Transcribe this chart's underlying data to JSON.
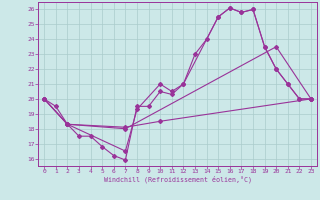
{
  "xlabel": "Windchill (Refroidissement éolien,°C)",
  "bg_color": "#cce8e8",
  "line_color": "#993399",
  "grid_color": "#aacccc",
  "xlim": [
    -0.5,
    23.5
  ],
  "ylim": [
    15.5,
    26.5
  ],
  "xticks": [
    0,
    1,
    2,
    3,
    4,
    5,
    6,
    7,
    8,
    9,
    10,
    11,
    12,
    13,
    14,
    15,
    16,
    17,
    18,
    19,
    20,
    21,
    22,
    23
  ],
  "yticks": [
    16,
    17,
    18,
    19,
    20,
    21,
    22,
    23,
    24,
    25,
    26
  ],
  "series1": [
    [
      0,
      20.0
    ],
    [
      1,
      19.5
    ],
    [
      2,
      18.3
    ],
    [
      3,
      17.5
    ],
    [
      4,
      17.5
    ],
    [
      5,
      16.8
    ],
    [
      6,
      16.2
    ],
    [
      7,
      15.9
    ],
    [
      8,
      19.5
    ],
    [
      9,
      19.5
    ],
    [
      10,
      20.5
    ],
    [
      11,
      20.3
    ],
    [
      12,
      21.0
    ],
    [
      13,
      23.0
    ],
    [
      14,
      24.0
    ],
    [
      15,
      25.5
    ],
    [
      16,
      26.1
    ],
    [
      17,
      25.8
    ],
    [
      18,
      26.0
    ],
    [
      19,
      23.5
    ],
    [
      20,
      22.0
    ],
    [
      21,
      21.0
    ],
    [
      22,
      20.0
    ],
    [
      23,
      20.0
    ]
  ],
  "series2": [
    [
      0,
      20.0
    ],
    [
      2,
      18.3
    ],
    [
      7,
      16.5
    ],
    [
      8,
      19.3
    ],
    [
      10,
      21.0
    ],
    [
      11,
      20.5
    ],
    [
      12,
      21.0
    ],
    [
      15,
      25.5
    ],
    [
      16,
      26.1
    ],
    [
      17,
      25.8
    ],
    [
      18,
      26.0
    ],
    [
      19,
      23.5
    ],
    [
      20,
      22.0
    ],
    [
      21,
      21.0
    ],
    [
      22,
      20.0
    ],
    [
      23,
      20.0
    ]
  ],
  "series3": [
    [
      0,
      20.0
    ],
    [
      2,
      18.3
    ],
    [
      7,
      18.0
    ],
    [
      20,
      23.5
    ],
    [
      23,
      20.0
    ]
  ],
  "series4": [
    [
      0,
      20.0
    ],
    [
      2,
      18.3
    ],
    [
      7,
      18.1
    ],
    [
      10,
      18.5
    ],
    [
      23,
      20.0
    ]
  ]
}
